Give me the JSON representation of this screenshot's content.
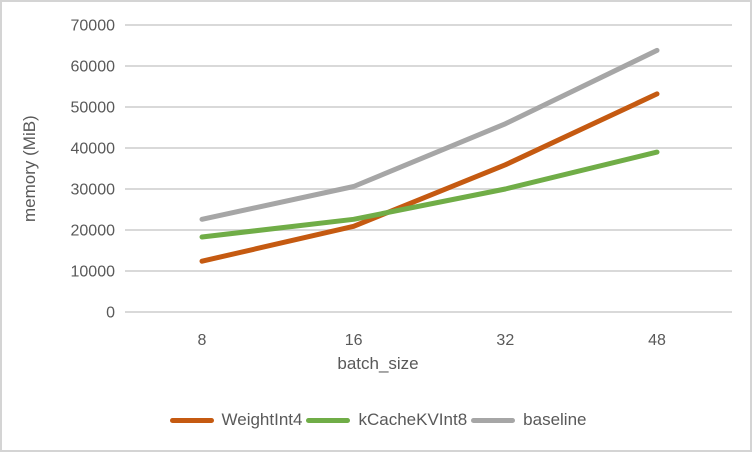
{
  "chart_data": {
    "type": "line",
    "title": "",
    "xlabel": "batch_size",
    "ylabel": "memory (MiB)",
    "categories": [
      "8",
      "16",
      "32",
      "48"
    ],
    "y_ticks": [
      0,
      10000,
      20000,
      30000,
      40000,
      50000,
      60000,
      70000
    ],
    "ylim": [
      0,
      70000
    ],
    "grid": "horizontal-only",
    "legend_position": "bottom-center",
    "series": [
      {
        "name": "WeightInt4",
        "color": "#c55a11",
        "values": [
          12400,
          20900,
          35900,
          53200
        ]
      },
      {
        "name": "kCacheKVInt8",
        "color": "#70ad47",
        "values": [
          18300,
          22600,
          30000,
          39000
        ]
      },
      {
        "name": "baseline",
        "color": "#a6a6a6",
        "values": [
          22600,
          30600,
          45900,
          63800
        ]
      }
    ]
  },
  "styles": {
    "text_color": "#595959",
    "gridline_color": "#d9d9d9",
    "axis_line_color": "#d9d9d9",
    "background": "#ffffff",
    "frame_border_color": "#d4d4d4"
  }
}
